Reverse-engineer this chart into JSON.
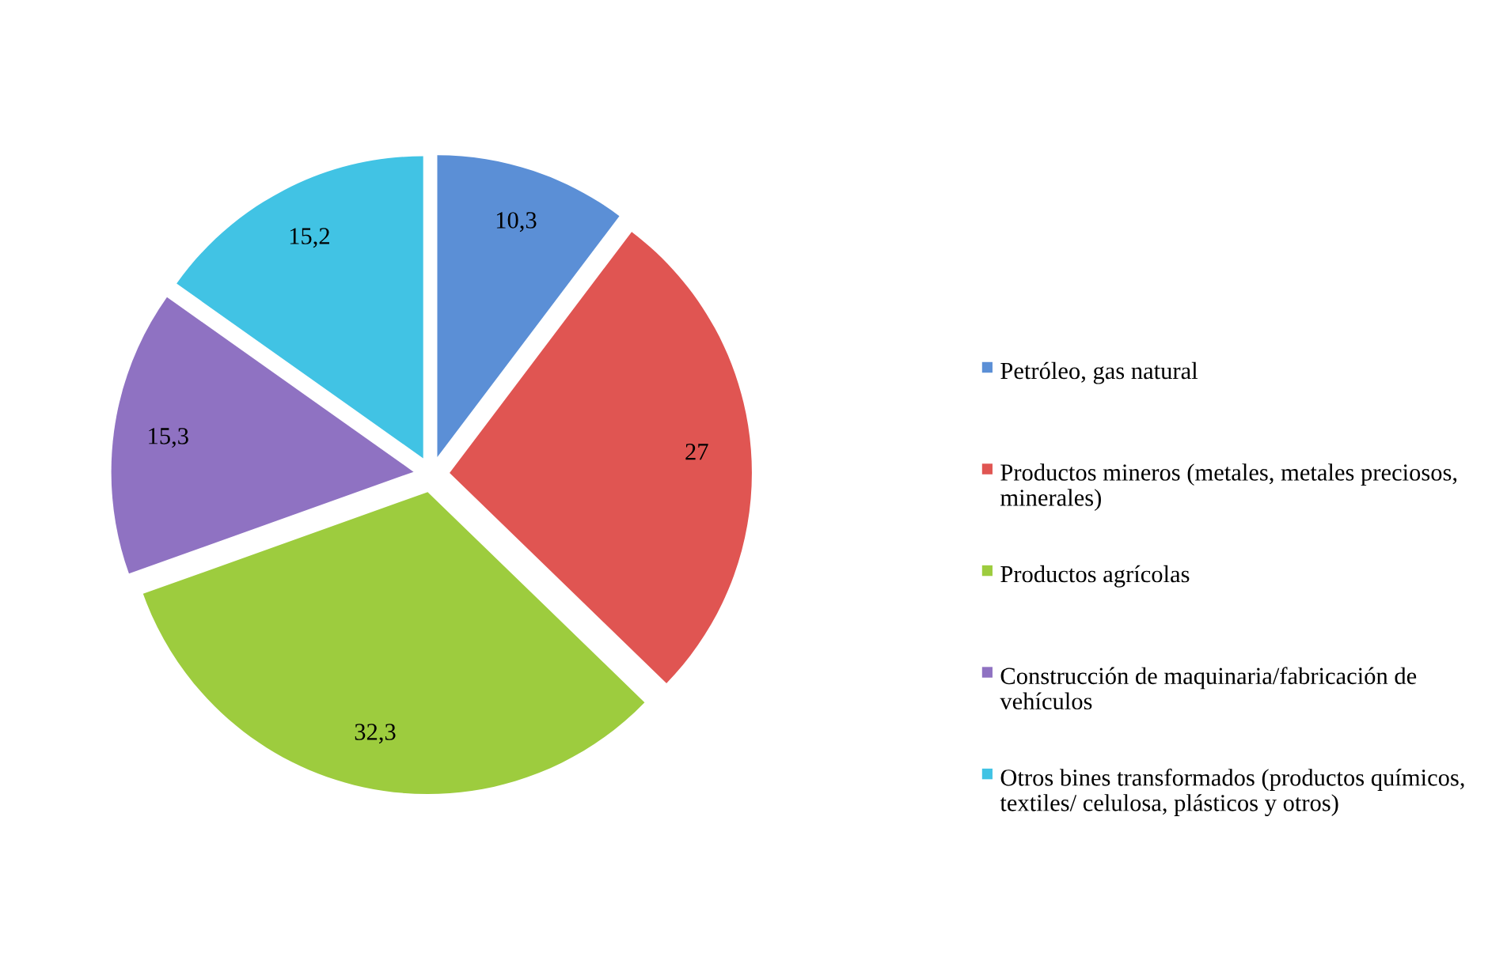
{
  "chart_data": {
    "type": "pie",
    "categories": [
      "Petróleo, gas natural",
      "Productos mineros (metales, metales preciosos, minerales)",
      "Productos agrícolas",
      "Construcción de maquinaria/fabricación de vehículos",
      "Otros bines transformados (productos químicos, textiles/ celulosa, plásticos y otros)"
    ],
    "values": [
      10.3,
      27,
      32.3,
      15.3,
      15.2
    ],
    "value_labels": [
      "10,3",
      "27",
      "32,3",
      "15,3",
      "15,2"
    ],
    "colors": [
      "#5b8fd6",
      "#e05552",
      "#9dcc3e",
      "#8f72c2",
      "#41c3e4"
    ],
    "legend": "right"
  }
}
